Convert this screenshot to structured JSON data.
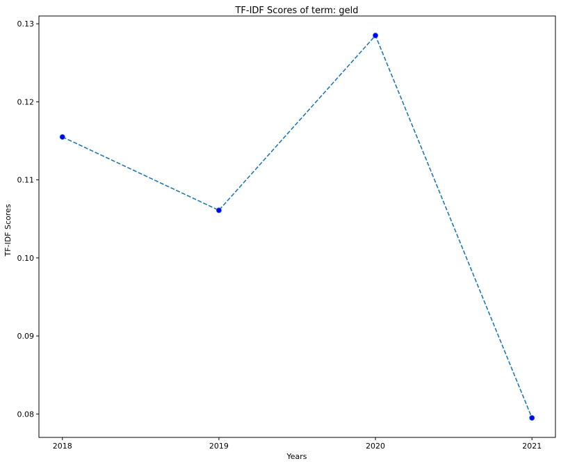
{
  "chart_data": {
    "type": "line",
    "title": "TF-IDF Scores of term: geld",
    "xlabel": "Years",
    "ylabel": "TF-IDF Scores",
    "x": [
      "2018",
      "2019",
      "2020",
      "2021"
    ],
    "series": [
      {
        "values": [
          0.1155,
          0.1061,
          0.1285,
          0.0795
        ],
        "line_style": "dashed",
        "line_color": "#1f77b4",
        "marker": "circle",
        "marker_color": "#0000ff"
      }
    ],
    "xlim": [
      -0.15,
      3.15
    ],
    "ylim": [
      0.077,
      0.131
    ],
    "yticks": [
      0.08,
      0.09,
      0.1,
      0.11,
      0.12,
      0.13
    ],
    "ytick_labels": [
      "0.08",
      "0.09",
      "0.10",
      "0.11",
      "0.12",
      "0.13"
    ],
    "grid": false,
    "legend": "none"
  }
}
